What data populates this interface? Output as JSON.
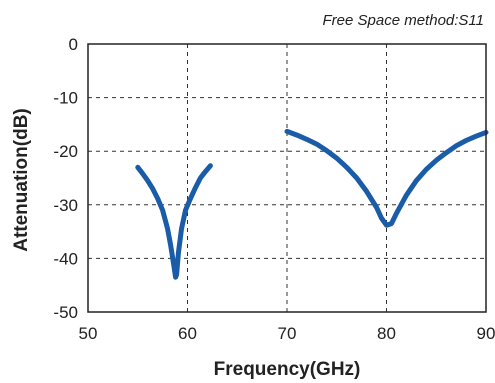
{
  "chart_data": {
    "type": "line",
    "annotation": "Free Space method:S11",
    "xlabel": "Frequency(GHz)",
    "ylabel": "Attenuation(dB)",
    "xlim": [
      50,
      90
    ],
    "ylim": [
      -50,
      0
    ],
    "x_ticks": [
      50,
      60,
      70,
      80,
      90
    ],
    "y_ticks": [
      0,
      -10,
      -20,
      -30,
      -40,
      -50
    ],
    "grid": "dashed",
    "series_color": "#1a5ca8",
    "series": [
      {
        "x": [
          55,
          55.5,
          56,
          56.5,
          57,
          57.5,
          58,
          58.3,
          58.6,
          58.8,
          58.9,
          59.1,
          59.4,
          59.8,
          60.3,
          60.8,
          61.3,
          61.8,
          62.3
        ],
        "y": [
          -23,
          -24.2,
          -25.5,
          -27,
          -28.8,
          -31,
          -34.5,
          -37.5,
          -41,
          -43.5,
          -43,
          -38.8,
          -34.5,
          -31,
          -28.8,
          -26.8,
          -25,
          -23.8,
          -22.7
        ]
      },
      {
        "x": [
          70,
          71,
          72,
          73,
          74,
          75,
          76,
          77,
          78,
          79,
          79.5,
          80,
          80.5,
          81,
          82,
          83,
          84,
          85,
          86,
          87,
          88,
          89,
          90
        ],
        "y": [
          -16.3,
          -17,
          -17.8,
          -18.7,
          -19.9,
          -21.3,
          -23,
          -25,
          -27.5,
          -30.5,
          -32.5,
          -33.8,
          -33.5,
          -31.6,
          -28.2,
          -25.5,
          -23.4,
          -21.7,
          -20.3,
          -19,
          -18,
          -17.2,
          -16.5
        ]
      }
    ]
  }
}
